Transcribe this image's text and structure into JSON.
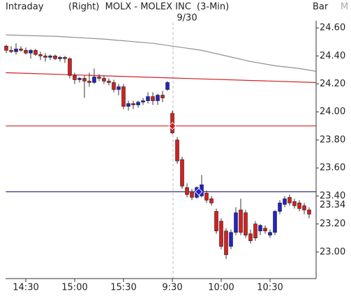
{
  "header": {
    "mode": "Intraday",
    "title": "(Right)  MOLX - MOLEX INC  (3-Min)",
    "chart_style": "Bar",
    "menu": "M",
    "date": "9/30"
  },
  "chart_data": {
    "type": "candlestick",
    "categories": [
      null,
      null,
      null,
      null,
      "14:30",
      null,
      null,
      null,
      null,
      null,
      null,
      null,
      null,
      null,
      "15:00",
      null,
      null,
      null,
      null,
      null,
      null,
      null,
      null,
      null,
      "15:30",
      null,
      null,
      null,
      null,
      null,
      null,
      null,
      null,
      null,
      "9:30",
      null,
      null,
      null,
      null,
      null,
      null,
      null,
      null,
      null,
      "10:00",
      null,
      null,
      null,
      null,
      null,
      null,
      null,
      null,
      null,
      "10:30",
      null,
      null,
      null,
      null,
      null,
      null,
      null,
      null
    ],
    "open": [
      24.47,
      24.44,
      24.43,
      24.45,
      24.44,
      24.42,
      24.44,
      24.41,
      24.4,
      24.39,
      24.4,
      24.38,
      24.39,
      24.38,
      24.26,
      24.23,
      24.24,
      24.22,
      24.21,
      24.25,
      24.24,
      24.22,
      24.21,
      24.16,
      24.18,
      24.04,
      24.06,
      24.05,
      24.07,
      24.08,
      24.11,
      24.08,
      24.12,
      24.16,
      23.99,
      23.8,
      23.66,
      23.46,
      23.43,
      23.39,
      23.4,
      23.42,
      23.38,
      23.29,
      23.22,
      23.15,
      23.04,
      23.14,
      23.3,
      23.28,
      23.13,
      23.2,
      23.15,
      23.17,
      23.12,
      23.14,
      23.29,
      23.34,
      23.39,
      23.36,
      23.35,
      23.33,
      23.3
    ],
    "high": [
      24.48,
      24.47,
      24.49,
      24.47,
      24.46,
      24.45,
      24.45,
      24.43,
      24.42,
      24.41,
      24.41,
      24.4,
      24.4,
      24.39,
      24.28,
      24.25,
      24.26,
      24.28,
      24.31,
      24.27,
      24.26,
      24.24,
      24.23,
      24.2,
      24.2,
      24.08,
      24.08,
      24.08,
      24.1,
      24.14,
      24.14,
      24.13,
      24.15,
      24.22,
      24.01,
      23.82,
      23.68,
      23.49,
      23.45,
      23.47,
      23.55,
      23.44,
      23.4,
      23.31,
      23.24,
      23.17,
      23.16,
      23.32,
      23.38,
      23.3,
      23.16,
      23.22,
      23.2,
      23.19,
      23.16,
      23.3,
      23.37,
      23.4,
      23.41,
      23.38,
      23.37,
      23.35,
      23.32
    ],
    "low": [
      24.42,
      24.42,
      24.41,
      24.43,
      24.41,
      24.38,
      24.4,
      24.37,
      24.36,
      24.37,
      24.37,
      24.36,
      24.35,
      24.24,
      24.2,
      24.21,
      24.1,
      24.18,
      24.2,
      24.22,
      24.2,
      24.19,
      24.14,
      24.12,
      24.02,
      24.01,
      24.02,
      24.03,
      24.05,
      24.06,
      24.05,
      24.05,
      24.07,
      24.15,
      23.84,
      23.63,
      23.45,
      23.39,
      23.37,
      23.38,
      23.39,
      23.35,
      23.33,
      23.13,
      23.02,
      22.95,
      23.02,
      23.12,
      23.12,
      23.1,
      23.06,
      23.08,
      23.12,
      23.13,
      23.1,
      23.12,
      23.27,
      23.32,
      23.33,
      23.31,
      23.29,
      23.27,
      23.24
    ],
    "close": [
      24.44,
      24.43,
      24.45,
      24.44,
      24.42,
      24.44,
      24.41,
      24.4,
      24.39,
      24.4,
      24.38,
      24.39,
      24.38,
      24.26,
      24.23,
      24.24,
      24.22,
      24.21,
      24.25,
      24.24,
      24.22,
      24.21,
      24.16,
      24.18,
      24.04,
      24.06,
      24.05,
      24.07,
      24.08,
      24.11,
      24.08,
      24.12,
      24.1,
      24.21,
      23.85,
      23.65,
      23.47,
      23.41,
      23.39,
      23.46,
      23.48,
      23.37,
      23.35,
      23.15,
      23.04,
      22.98,
      23.14,
      23.28,
      23.14,
      23.12,
      23.08,
      23.1,
      23.19,
      23.15,
      23.14,
      23.29,
      23.35,
      23.38,
      23.35,
      23.33,
      23.31,
      23.3,
      23.27
    ],
    "up_color": "#2323c8",
    "down_color": "#d42020",
    "overlays": [
      {
        "color": "#909090",
        "x": [
          -0.1,
          10,
          20,
          30,
          34,
          40,
          45,
          50,
          55,
          60,
          63.4
        ],
        "values": [
          24.55,
          24.54,
          24.52,
          24.49,
          24.47,
          24.44,
          24.4,
          24.36,
          24.33,
          24.31,
          24.29
        ]
      },
      {
        "color": "#d42020",
        "x": [
          -0.1,
          63.4
        ],
        "values": [
          24.28,
          24.21
        ]
      },
      {
        "color": "#d42020",
        "x": [
          -0.1,
          63.4
        ],
        "values": [
          23.9,
          23.9
        ]
      },
      {
        "color": "#1a1a6e",
        "x": [
          -0.1,
          63.4
        ],
        "values": [
          23.43,
          23.43
        ]
      }
    ],
    "markers": [
      {
        "color": "#d42020",
        "x": 34,
        "value": 23.9
      },
      {
        "color": "#2323c8",
        "x": 39.4,
        "value": 23.43
      }
    ],
    "last_price": 23.34,
    "ylim": [
      22.81,
      24.65
    ],
    "yticks": [
      {
        "value": 23.0,
        "label": "23.00"
      },
      {
        "value": 23.2,
        "label": "23.20"
      },
      {
        "value": 23.4,
        "label": "23.40"
      },
      {
        "value": 23.6,
        "label": "23.60"
      },
      {
        "value": 23.8,
        "label": "23.80"
      },
      {
        "value": 24.0,
        "label": "24.00"
      },
      {
        "value": 24.2,
        "label": "24.20"
      },
      {
        "value": 24.4,
        "label": "24.40"
      },
      {
        "value": 24.6,
        "label": "24.60"
      }
    ]
  }
}
